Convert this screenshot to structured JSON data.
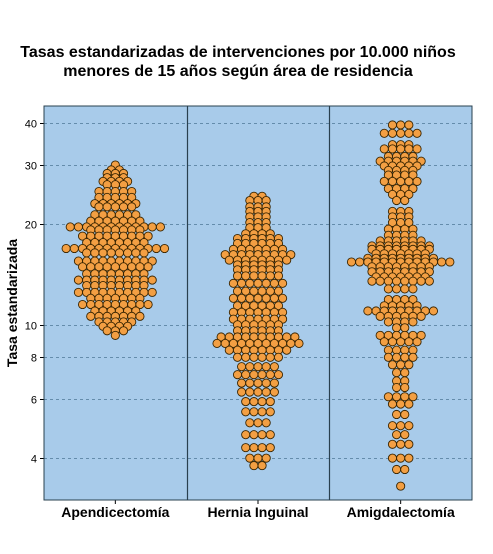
{
  "chart_data": {
    "type": "scatter",
    "subtype": "dot-plot",
    "title_lines": [
      "Tasas estandarizadas de intervenciones por 10.000 niños",
      "menores de 15 años según área de residencia"
    ],
    "xlabel": "",
    "ylabel": "Tasa estandarizada",
    "y_scale": "log",
    "yticks": [
      4,
      6,
      8,
      10,
      20,
      30,
      40
    ],
    "ylim": [
      3,
      45
    ],
    "grid": "horizontal-dashed",
    "colors": {
      "background": "#a8cbea",
      "point_fill": "#f39f43",
      "point_stroke": "#3a2500",
      "grid": "#4d7896",
      "divider": "#29404f"
    },
    "categories": [
      "Apendicectomía",
      "Hernia Inguinal",
      "Amigdalectomía"
    ],
    "series": [
      {
        "category": "Apendicectomía",
        "rows": [
          [
            30.0,
            1
          ],
          [
            29.0,
            2
          ],
          [
            28.3,
            3
          ],
          [
            27.5,
            3
          ],
          [
            26.8,
            4
          ],
          [
            26.2,
            3
          ],
          [
            25.0,
            5
          ],
          [
            24.0,
            5
          ],
          [
            23.0,
            6
          ],
          [
            22.5,
            5
          ],
          [
            21.3,
            6
          ],
          [
            20.4,
            7
          ],
          [
            19.6,
            12
          ],
          [
            19.2,
            7
          ],
          [
            18.4,
            9
          ],
          [
            17.6,
            8
          ],
          [
            16.9,
            13
          ],
          [
            16.4,
            8
          ],
          [
            15.5,
            10
          ],
          [
            14.9,
            9
          ],
          [
            14.2,
            8
          ],
          [
            13.6,
            10
          ],
          [
            13.1,
            8
          ],
          [
            12.5,
            10
          ],
          [
            12.0,
            7
          ],
          [
            11.5,
            9
          ],
          [
            11.0,
            6
          ],
          [
            10.6,
            7
          ],
          [
            10.2,
            5
          ],
          [
            9.9,
            4
          ],
          [
            9.6,
            3
          ],
          [
            9.3,
            1
          ]
        ]
      },
      {
        "category": "Hernia Inguinal",
        "rows": [
          [
            24.2,
            2
          ],
          [
            23.5,
            3
          ],
          [
            22.5,
            3
          ],
          [
            21.8,
            3
          ],
          [
            21.0,
            3
          ],
          [
            20.2,
            3
          ],
          [
            19.5,
            3
          ],
          [
            18.7,
            4
          ],
          [
            18.1,
            6
          ],
          [
            17.5,
            6
          ],
          [
            16.8,
            7
          ],
          [
            16.2,
            9
          ],
          [
            15.6,
            8
          ],
          [
            15.1,
            6
          ],
          [
            14.6,
            6
          ],
          [
            14.0,
            6
          ],
          [
            13.3,
            7
          ],
          [
            12.6,
            6
          ],
          [
            12.0,
            7
          ],
          [
            11.4,
            6
          ],
          [
            10.9,
            7
          ],
          [
            10.4,
            7
          ],
          [
            10.0,
            6
          ],
          [
            9.6,
            6
          ],
          [
            9.2,
            10
          ],
          [
            8.8,
            11
          ],
          [
            8.4,
            8
          ],
          [
            8.0,
            6
          ],
          [
            7.5,
            5
          ],
          [
            7.1,
            6
          ],
          [
            6.7,
            5
          ],
          [
            6.3,
            5
          ],
          [
            5.9,
            4
          ],
          [
            5.5,
            4
          ],
          [
            5.1,
            3
          ],
          [
            4.7,
            4
          ],
          [
            4.3,
            4
          ],
          [
            4.0,
            3
          ],
          [
            3.8,
            2
          ]
        ]
      },
      {
        "category": "Amigdalectomía",
        "rows": [
          [
            39.5,
            3
          ],
          [
            37.3,
            5
          ],
          [
            34.5,
            3
          ],
          [
            33.5,
            5
          ],
          [
            31.8,
            4
          ],
          [
            30.8,
            6
          ],
          [
            29.8,
            5
          ],
          [
            28.9,
            4
          ],
          [
            28.0,
            4
          ],
          [
            26.8,
            5
          ],
          [
            25.5,
            4
          ],
          [
            24.5,
            3
          ],
          [
            23.5,
            2
          ],
          [
            21.8,
            3
          ],
          [
            21.0,
            3
          ],
          [
            20.2,
            3
          ],
          [
            19.3,
            4
          ],
          [
            18.5,
            4
          ],
          [
            17.8,
            6
          ],
          [
            17.2,
            8
          ],
          [
            16.8,
            8
          ],
          [
            16.3,
            7
          ],
          [
            15.8,
            9
          ],
          [
            15.4,
            13
          ],
          [
            14.9,
            8
          ],
          [
            14.4,
            8
          ],
          [
            13.9,
            7
          ],
          [
            13.5,
            8
          ],
          [
            12.8,
            4
          ],
          [
            11.9,
            4
          ],
          [
            11.4,
            5
          ],
          [
            11.0,
            9
          ],
          [
            10.6,
            6
          ],
          [
            10.2,
            4
          ],
          [
            9.8,
            2
          ],
          [
            9.3,
            6
          ],
          [
            8.9,
            5
          ],
          [
            8.4,
            4
          ],
          [
            8.0,
            4
          ],
          [
            7.6,
            3
          ],
          [
            7.2,
            2
          ],
          [
            6.8,
            2
          ],
          [
            6.5,
            2
          ],
          [
            6.1,
            4
          ],
          [
            5.8,
            3
          ],
          [
            5.4,
            2
          ],
          [
            5.0,
            3
          ],
          [
            4.7,
            2
          ],
          [
            4.4,
            3
          ],
          [
            4.0,
            3
          ],
          [
            3.7,
            2
          ],
          [
            3.3,
            1
          ]
        ]
      }
    ]
  }
}
